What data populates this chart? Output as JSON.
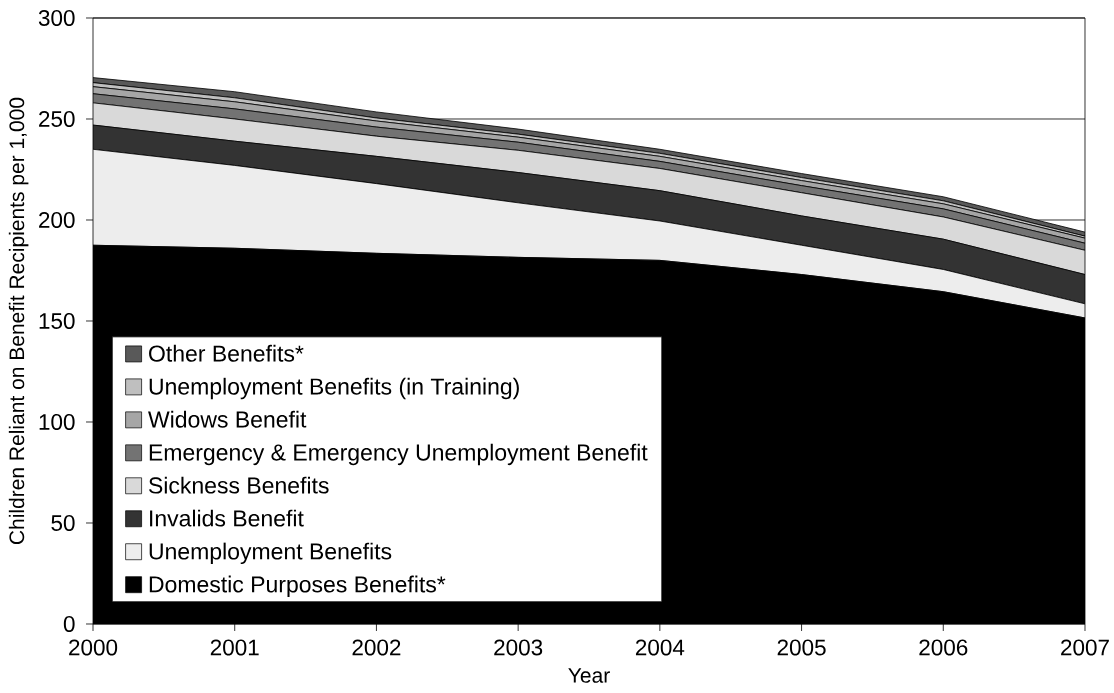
{
  "chart_data": {
    "type": "area",
    "stacked": true,
    "xlabel": "Year",
    "ylabel": "Children Reliant on Benefit Recipients per 1,000",
    "x": [
      2000,
      2001,
      2002,
      2003,
      2004,
      2005,
      2006,
      2007
    ],
    "xlim": [
      2000,
      2007
    ],
    "xticks": [
      2000,
      2001,
      2002,
      2003,
      2004,
      2005,
      2006,
      2007
    ],
    "ylim": [
      0,
      300
    ],
    "yticks": [
      0,
      50,
      100,
      150,
      200,
      250,
      300
    ],
    "grid": "y",
    "legend": "bottom left",
    "series": [
      {
        "name": "Domestic Purposes Benefits*",
        "color": "#000000",
        "values": [
          187.5,
          186,
          183.5,
          181.5,
          180,
          173,
          164.5,
          151.5
        ]
      },
      {
        "name": "Unemployment Benefits",
        "color": "#ededed",
        "values": [
          47.5,
          41,
          34.5,
          27,
          19.5,
          14.5,
          11,
          7
        ]
      },
      {
        "name": "Invalids Benefit",
        "color": "#333333",
        "values": [
          12,
          12,
          13.5,
          15,
          15,
          14.5,
          15,
          14.5
        ]
      },
      {
        "name": "Sickness Benefits",
        "color": "#d9d9d9",
        "values": [
          11,
          11,
          10,
          11,
          11,
          11.5,
          11,
          12
        ]
      },
      {
        "name": "Emergency & Emergency Unemployment Benefit",
        "color": "#737373",
        "values": [
          4.5,
          5,
          4.5,
          4,
          3.5,
          3.5,
          4,
          3.5
        ]
      },
      {
        "name": "Widows Benefit",
        "color": "#a6a6a6",
        "values": [
          3.5,
          3.5,
          3,
          2.5,
          2.5,
          2.5,
          2.5,
          2.5
        ]
      },
      {
        "name": "Unemployment Benefits (in Training)",
        "color": "#bfbfbf",
        "values": [
          2,
          2,
          1.5,
          1.5,
          1.5,
          1.5,
          1.5,
          1
        ]
      },
      {
        "name": "Other Benefits*",
        "color": "#595959",
        "values": [
          2.5,
          3,
          3,
          2.5,
          2,
          2,
          2,
          2
        ]
      }
    ]
  }
}
